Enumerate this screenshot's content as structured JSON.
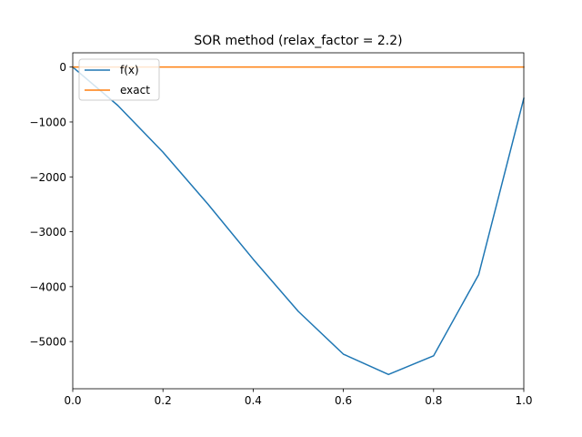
{
  "chart_data": {
    "type": "line",
    "title": "SOR method (relax_factor = 2.2)",
    "xlabel": "",
    "ylabel": "",
    "xlim": [
      0.0,
      1.0
    ],
    "ylim": [
      -5860,
      260
    ],
    "x_ticks": [
      0.0,
      0.2,
      0.4,
      0.6,
      0.8,
      1.0
    ],
    "x_tick_labels": [
      "0.0",
      "0.2",
      "0.4",
      "0.6",
      "0.8",
      "1.0"
    ],
    "y_ticks": [
      0,
      -1000,
      -2000,
      -3000,
      -4000,
      -5000
    ],
    "y_tick_labels": [
      "0",
      "−1000",
      "−2000",
      "−3000",
      "−4000",
      "−5000"
    ],
    "grid": false,
    "legend_position": "top-left",
    "series": [
      {
        "name": "f(x)",
        "color": "#1f77b4",
        "x": [
          0.0,
          0.1,
          0.2,
          0.3,
          0.4,
          0.5,
          0.6,
          0.7,
          0.8,
          0.9,
          1.0
        ],
        "y": [
          0,
          -700,
          -1550,
          -2500,
          -3500,
          -4450,
          -5230,
          -5600,
          -5260,
          -3780,
          -570
        ]
      },
      {
        "name": "exact",
        "color": "#ff7f0e",
        "x": [
          0.0,
          0.1,
          0.2,
          0.3,
          0.4,
          0.5,
          0.6,
          0.7,
          0.8,
          0.9,
          1.0
        ],
        "y": [
          0,
          0,
          0,
          0,
          0,
          0,
          0,
          0,
          0,
          0,
          0
        ]
      }
    ]
  }
}
